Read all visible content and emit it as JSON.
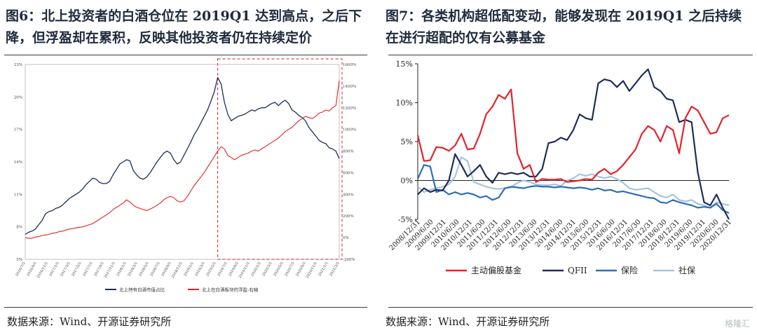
{
  "left": {
    "title": "图6：北上投资者的白酒仓位在 2019Q1 达到高点，之后下降，但浮盈却在累积，反映其他投资者仍在持续定价",
    "source": "数据来源：Wind、开源证券研究所",
    "chart_data": {
      "type": "line",
      "x_tick_labels": [
        "2016/7/5",
        "2016/9/5",
        "2016/11/5",
        "2017/1/5",
        "2017/3/5",
        "2017/5/5",
        "2017/7/5",
        "2017/9/5",
        "2017/11/5",
        "2018/1/5",
        "2018/3/5",
        "2018/5/5",
        "2018/7/5",
        "2018/9/5",
        "2018/11/5",
        "2019/1/5",
        "2019/3/5",
        "2019/5/5",
        "2019/7/5",
        "2019/9/5",
        "2019/11/5",
        "2020/1/5",
        "2020/3/5",
        "2020/5/5",
        "2020/7/5",
        "2020/9/5",
        "2020/11/5",
        "2021/1/5",
        "2021/3/5"
      ],
      "y_left": {
        "ticks": [
          5,
          8,
          11,
          14,
          17,
          20,
          23
        ],
        "tick_labels": [
          "5%",
          "8%",
          "11%",
          "14%",
          "17%",
          "20%",
          "23%"
        ],
        "ylim": [
          5,
          23
        ]
      },
      "y_right": {
        "ticks": [
          -200,
          0,
          200,
          400,
          600,
          800,
          1000,
          1200,
          1400,
          1600
        ],
        "tick_labels": [
          "-200%",
          "0%",
          "200%",
          "400%",
          "600%",
          "800%",
          "1000%",
          "1200%",
          "1400%",
          "1600%"
        ],
        "ylim": [
          -200,
          1600
        ]
      },
      "highlight_box": {
        "from_index": 57,
        "to_index": 93
      },
      "series": [
        {
          "name": "北上持有白酒市值占比",
          "color": "#1f2d5c",
          "axis": "left",
          "values": [
            7.3,
            7.5,
            7.6,
            7.8,
            8.2,
            8.6,
            9.2,
            9.4,
            9.5,
            9.7,
            9.8,
            10.0,
            10.3,
            10.6,
            10.8,
            11.0,
            11.2,
            11.5,
            11.9,
            12.2,
            12.5,
            12.4,
            12.1,
            12.0,
            12.0,
            12.2,
            12.8,
            13.3,
            13.8,
            14.0,
            14.2,
            14.1,
            13.2,
            12.8,
            12.5,
            12.4,
            12.6,
            13.0,
            13.5,
            14.0,
            14.4,
            14.8,
            15.0,
            14.8,
            14.2,
            13.8,
            14.0,
            14.6,
            15.2,
            15.8,
            16.5,
            17.0,
            17.6,
            18.2,
            18.8,
            19.6,
            20.5,
            21.8,
            21.2,
            19.5,
            18.4,
            17.8,
            18.0,
            18.2,
            18.3,
            18.4,
            18.6,
            18.8,
            18.7,
            18.9,
            19.0,
            19.0,
            19.2,
            19.4,
            19.5,
            19.2,
            19.5,
            19.7,
            19.4,
            18.8,
            18.6,
            18.3,
            18.1,
            17.8,
            17.2,
            16.8,
            16.4,
            16.0,
            15.8,
            15.7,
            15.3,
            15.2,
            15.0,
            14.3
          ]
        },
        {
          "name": "北上在白酒板块的浮盈:右轴",
          "color": "#e32222",
          "axis": "right",
          "values": [
            0,
            -5,
            -5,
            5,
            10,
            20,
            25,
            30,
            40,
            45,
            55,
            60,
            70,
            80,
            85,
            90,
            95,
            100,
            110,
            120,
            130,
            150,
            170,
            190,
            210,
            230,
            260,
            280,
            300,
            320,
            350,
            330,
            300,
            280,
            270,
            260,
            250,
            265,
            280,
            300,
            320,
            350,
            370,
            380,
            370,
            340,
            330,
            340,
            380,
            430,
            480,
            520,
            560,
            600,
            650,
            700,
            750,
            800,
            840,
            820,
            760,
            740,
            720,
            740,
            760,
            770,
            780,
            800,
            810,
            800,
            820,
            840,
            860,
            880,
            900,
            920,
            950,
            980,
            1000,
            1020,
            1050,
            1080,
            1100,
            1120,
            1110,
            1100,
            1120,
            1150,
            1160,
            1180,
            1170,
            1200,
            1220,
            1450
          ]
        }
      ],
      "legend": [
        "北上持有白酒市值占比",
        "北上在白酒板块的浮盈:右轴"
      ]
    }
  },
  "right": {
    "title": "图7：各类机构超低配变动，能够发现在 2019Q1 之后持续在进行超配的仅有公募基金",
    "source": "数据来源：Wind、开源证券研究所",
    "chart_data": {
      "type": "line",
      "x_tick_labels": [
        "2008/12/31",
        "2009/6/30",
        "2009/12/31",
        "2010/6/30",
        "2010/12/31",
        "2011/6/30",
        "2011/12/31",
        "2012/6/30",
        "2012/12/31",
        "2013/6/30",
        "2013/12/31",
        "2014/6/30",
        "2014/12/31",
        "2015/6/30",
        "2015/12/31",
        "2016/6/30",
        "2016/12/31",
        "2017/6/30",
        "2017/12/31",
        "2018/6/30",
        "2018/12/31",
        "2019/6/30",
        "2019/12/31",
        "2020/6/30",
        "2020/12/31"
      ],
      "y": {
        "ticks": [
          -5,
          0,
          5,
          10,
          15
        ],
        "tick_labels": [
          "-5%",
          "0%",
          "5%",
          "10%",
          "15%"
        ],
        "ylim": [
          -5,
          15
        ]
      },
      "series": [
        {
          "name": "主动偏股基金",
          "color": "#e5232a",
          "values": [
            5.8,
            2.5,
            2.6,
            4.3,
            4.2,
            3.8,
            4.5,
            6.0,
            4.0,
            4.1,
            6.0,
            8.5,
            9.5,
            11.0,
            10.5,
            11.7,
            3.5,
            1.5,
            2.0,
            -0.2,
            0.2,
            0.1,
            0.1,
            0.2,
            -0.2,
            -0.1,
            0.0,
            0.2,
            0.1,
            1.0,
            1.5,
            0.8,
            1.2,
            2.0,
            3.0,
            4.0,
            6.0,
            7.0,
            6.5,
            5.0,
            7.0,
            6.5,
            3.5,
            8.0,
            9.5,
            9.0,
            7.5,
            6.0,
            6.2,
            8.0,
            8.4
          ]
        },
        {
          "name": "QFII",
          "color": "#1f2d5c",
          "values": [
            -1.8,
            -1.0,
            -1.5,
            -1.2,
            -1.3,
            0.0,
            3.4,
            2.0,
            0.5,
            1.2,
            2.0,
            0.5,
            -0.3,
            1.0,
            0.8,
            1.0,
            0.8,
            1.0,
            0.5,
            0.5,
            1.5,
            4.8,
            5.0,
            5.5,
            5.2,
            6.5,
            8.5,
            8.0,
            7.8,
            12.5,
            13.0,
            12.8,
            12.0,
            12.8,
            11.5,
            12.5,
            13.5,
            14.3,
            12.0,
            11.5,
            10.5,
            10.3,
            7.5,
            7.8,
            7.5,
            1.0,
            -2.8,
            -3.2,
            -1.8,
            -3.5,
            -5.0
          ]
        },
        {
          "name": "保险",
          "color": "#2e6fb3",
          "values": [
            0.2,
            2.0,
            1.8,
            -1.5,
            -1.2,
            -1.8,
            -1.5,
            -1.8,
            -1.6,
            -1.8,
            -2.2,
            -2.0,
            -2.5,
            -2.2,
            -1.0,
            -0.8,
            -0.9,
            -1.0,
            -0.8,
            -0.7,
            -0.8,
            -0.8,
            -0.9,
            -0.8,
            -0.9,
            -1.0,
            -0.9,
            -1.0,
            -1.2,
            -1.0,
            -1.3,
            -1.2,
            -1.5,
            -1.4,
            -1.6,
            -1.8,
            -2.0,
            -2.2,
            -2.3,
            -2.8,
            -2.9,
            -2.5,
            -2.8,
            -3.0,
            -3.2,
            -3.5,
            -3.4,
            -3.5,
            -3.0,
            -3.8,
            -4.2
          ]
        },
        {
          "name": "社保",
          "color": "#a6c4e2",
          "values": [
            -0.8,
            -1.5,
            -1.2,
            -1.0,
            -0.8,
            -0.5,
            0.5,
            3.0,
            2.5,
            -0.2,
            -0.5,
            -0.8,
            -1.0,
            -1.1,
            -1.0,
            -0.9,
            -0.3,
            0.0,
            -0.2,
            -0.5,
            -0.6,
            -0.6,
            -0.5,
            -0.7,
            0.0,
            0.3,
            0.8,
            0.6,
            0.8,
            0.5,
            0.3,
            0.5,
            0.2,
            -0.3,
            -1.0,
            -1.2,
            -1.1,
            -1.0,
            -1.5,
            -2.0,
            -2.2,
            -1.8,
            -2.5,
            -2.7,
            -2.5,
            -3.0,
            -3.2,
            -3.5,
            -2.8,
            -3.0,
            -3.2
          ]
        }
      ],
      "legend": [
        "主动偏股基金",
        "QFII",
        "保险",
        "社保"
      ]
    }
  },
  "watermark": "格隆汇"
}
